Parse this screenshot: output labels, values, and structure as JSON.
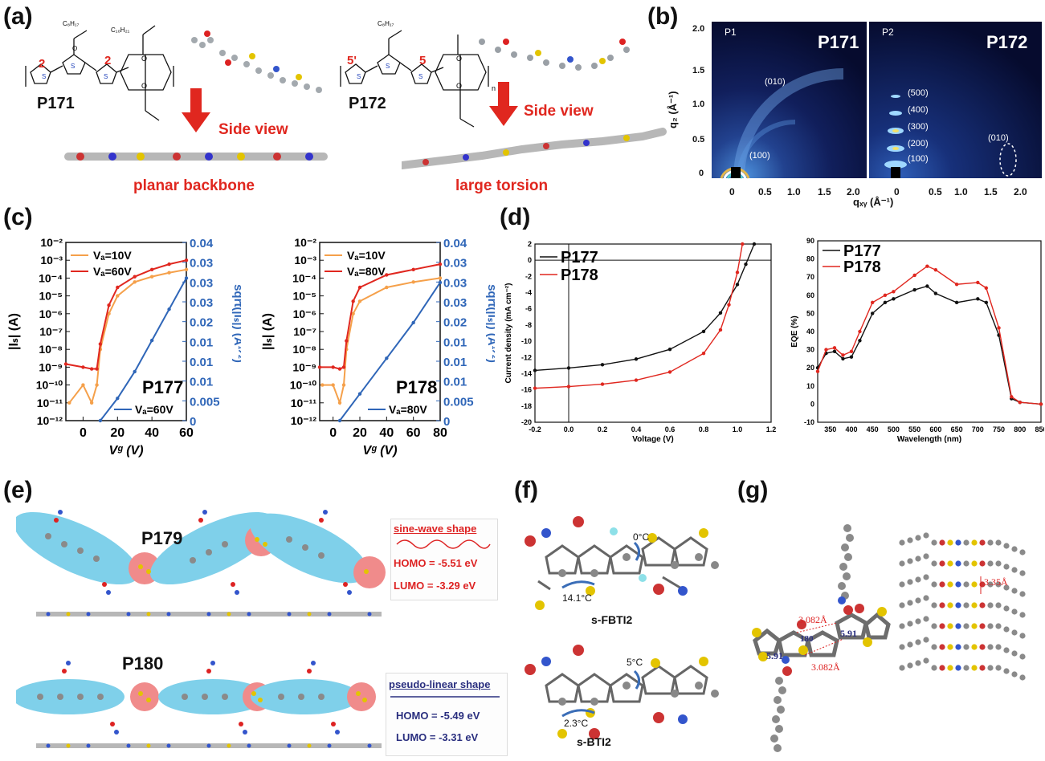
{
  "panels": {
    "a": {
      "label": "(a)",
      "p171": "P171",
      "p172": "P172",
      "side_view": "Side view",
      "planar": "planar backbone",
      "torsion": "large torsion",
      "pos2a": "2",
      "pos2b": "2",
      "pos5a": "5'",
      "pos5b": "5"
    },
    "b": {
      "label": "(b)",
      "left_tag": "P1",
      "right_tag": "P2",
      "left_title": "P171",
      "right_title": "P172",
      "qz_label": "q₂ (Å⁻¹)",
      "qxy_label": "qₓᵧ (Å⁻¹)",
      "yticks": [
        "2.0",
        "1.5",
        "1.0",
        "0.5",
        "0"
      ],
      "xticks": [
        "0",
        "0.5",
        "1.0",
        "1.5",
        "2.0"
      ],
      "left_peaks": [
        "(010)",
        "(100)"
      ],
      "right_peaks": [
        "(500)",
        "(400)",
        "(300)",
        "(200)",
        "(100)",
        "(010)"
      ]
    },
    "c": {
      "label": "(c)",
      "left": {
        "name": "P177",
        "legend": [
          "Vₐ=10V",
          "Vₐ=60V",
          "Vₐ=60V"
        ],
        "yleft_ticks": [
          "10⁻²",
          "10⁻³",
          "10⁻⁴",
          "10⁻⁵",
          "10⁻⁶",
          "10⁻⁷",
          "10⁻⁸",
          "10⁻⁹",
          "10⁻¹⁰",
          "10⁻¹¹",
          "10⁻¹²"
        ],
        "yright_ticks": [
          "0.04",
          "0.03",
          "0.03",
          "0.03",
          "0.02",
          "0.01",
          "0.01",
          "0.01",
          "0.005",
          "0"
        ],
        "xticks": [
          "0",
          "20",
          "40",
          "60"
        ],
        "ylabel_left": "|Iₛ| (A)",
        "ylabel_right": "sqrt(|Iₛ|) (A¹ᐟ²)",
        "xlabel": "Vᵍ (V)"
      },
      "right": {
        "name": "P178",
        "legend": [
          "Vₐ=10V",
          "Vₐ=80V",
          "Vₐ=80V"
        ],
        "yleft_ticks": [
          "10⁻²",
          "10⁻³",
          "10⁻⁴",
          "10⁻⁵",
          "10⁻⁶",
          "10⁻⁷",
          "10⁻⁸",
          "10⁻⁹",
          "10⁻¹⁰",
          "10⁻¹¹",
          "10⁻¹²"
        ],
        "yright_ticks": [
          "0.04",
          "0.03",
          "0.03",
          "0.03",
          "0.02",
          "0.01",
          "0.01",
          "0.01",
          "0.005",
          "0"
        ],
        "xticks": [
          "0",
          "20",
          "40",
          "60",
          "80"
        ],
        "ylabel_left": "|Iₛ| (A)",
        "ylabel_right": "sqrt(|Iₛ|) (A¹ᐟ²)",
        "xlabel": "Vᵍ (V)"
      }
    },
    "d": {
      "label": "(d)",
      "jv": {
        "ylabel": "Current density (mA cm⁻²)",
        "xlabel": "Voltage (V)",
        "legend": [
          "P177",
          "P178"
        ],
        "yticks": [
          "2",
          "0",
          "-2",
          "-4",
          "-6",
          "-8",
          "-10",
          "-12",
          "-14",
          "-16",
          "-18",
          "-20"
        ],
        "xticks": [
          "-0.2",
          "0.0",
          "0.2",
          "0.4",
          "0.6",
          "0.8",
          "1.0",
          "1.2"
        ]
      },
      "eqe": {
        "ylabel": "EQE (%)",
        "xlabel": "Wavelength (nm)",
        "legend": [
          "P177",
          "P178"
        ],
        "yticks": [
          "90",
          "80",
          "70",
          "60",
          "50",
          "40",
          "30",
          "20",
          "10",
          "0",
          "-10"
        ],
        "xticks": [
          "350",
          "400",
          "450",
          "500",
          "550",
          "600",
          "650",
          "700",
          "750",
          "800",
          "850"
        ]
      }
    },
    "e": {
      "label": "(e)",
      "p179": "P179",
      "p180": "P180",
      "sine": "sine-wave shape",
      "homo1": "HOMO = -5.51 eV",
      "lumo1": "LUMO = -3.29 eV",
      "pseudo": "pseudo-linear shape",
      "homo2": "HOMO = -5.49 eV",
      "lumo2": "LUMO = -3.31 eV"
    },
    "f": {
      "label": "(f)",
      "a1": "0°C",
      "a2": "14.1°C",
      "name1": "s-FBTI2",
      "a3": "5°C",
      "a4": "2.3°C",
      "name2": "s-BTI2"
    },
    "g": {
      "label": "(g)",
      "d1": "3.082Å",
      "d2": "3.082Å",
      "ang1": "5.91",
      "ang2": "5.91",
      "ang3": "180",
      "stack": "3.35Å"
    }
  },
  "colors": {
    "red": "#e0271f",
    "blue_curve": "#2f66b8",
    "orange": "#f5a04a",
    "black_curve": "#111111",
    "cyan": "#7fd0ea",
    "pink": "#f08b8b",
    "navy": "#2a2f7f"
  },
  "chart_data": [
    {
      "type": "line",
      "title": "",
      "xlabel": "Vᵍ (V)",
      "ylabel": "|Iₛ| (A)",
      "yscale": "log",
      "xlim": [
        -10,
        60
      ],
      "ylim": [
        1e-12,
        0.01
      ],
      "series": [
        {
          "name": "Vₐ=10V",
          "x": [
            -8,
            0,
            5,
            8,
            10,
            15,
            20,
            30,
            40,
            50,
            60
          ],
          "y": [
            1e-11,
            1e-10,
            1e-11,
            1e-10,
            1e-08,
            1e-06,
            1e-05,
            6e-05,
            0.00012,
            0.0002,
            0.0003
          ]
        },
        {
          "name": "Vₐ=60V",
          "x": [
            -10,
            0,
            5,
            8,
            10,
            15,
            20,
            30,
            40,
            50,
            60
          ],
          "y": [
            1.5e-09,
            1e-09,
            8e-10,
            8e-10,
            2e-08,
            3e-06,
            3e-05,
            0.00012,
            0.0003,
            0.0006,
            0.001
          ]
        },
        {
          "name": "Vₐ=60V",
          "axis": "right",
          "x": [
            10,
            20,
            30,
            40,
            50,
            60
          ],
          "y": [
            0,
            0.005,
            0.011,
            0.018,
            0.025,
            0.032
          ]
        }
      ]
    },
    {
      "type": "line",
      "title": "",
      "xlabel": "Vᵍ (V)",
      "ylabel": "|Iₛ| (A)",
      "yscale": "log",
      "xlim": [
        -10,
        80
      ],
      "ylim": [
        1e-12,
        0.01
      ],
      "series": [
        {
          "name": "Vₐ=10V",
          "x": [
            -8,
            0,
            5,
            8,
            10,
            15,
            20,
            40,
            60,
            80
          ],
          "y": [
            1e-10,
            1e-10,
            1e-11,
            1e-10,
            1e-08,
            1e-06,
            5e-06,
            3e-05,
            6e-05,
            0.0001
          ]
        },
        {
          "name": "Vₐ=80V",
          "x": [
            -10,
            0,
            5,
            8,
            10,
            15,
            20,
            40,
            60,
            80
          ],
          "y": [
            1e-09,
            1e-09,
            8e-10,
            1e-09,
            3e-08,
            5e-06,
            3e-05,
            0.00015,
            0.0003,
            0.0006
          ]
        },
        {
          "name": "Vₐ=80V",
          "axis": "right",
          "x": [
            5,
            20,
            40,
            60,
            80
          ],
          "y": [
            0,
            0.006,
            0.014,
            0.022,
            0.031
          ]
        }
      ]
    },
    {
      "type": "line",
      "title": "",
      "xlabel": "Voltage (V)",
      "ylabel": "Current density (mA cm⁻²)",
      "xlim": [
        -0.2,
        1.2
      ],
      "ylim": [
        -20,
        2
      ],
      "series": [
        {
          "name": "P177",
          "x": [
            -0.2,
            0,
            0.2,
            0.4,
            0.6,
            0.8,
            0.9,
            1.0,
            1.05,
            1.1
          ],
          "y": [
            -13.6,
            -13.3,
            -12.9,
            -12.2,
            -11.0,
            -8.8,
            -6.5,
            -3.0,
            -0.5,
            2
          ]
        },
        {
          "name": "P178",
          "x": [
            -0.2,
            0,
            0.2,
            0.4,
            0.6,
            0.8,
            0.9,
            0.95,
            1.0,
            1.03
          ],
          "y": [
            -15.8,
            -15.6,
            -15.3,
            -14.8,
            -13.8,
            -11.5,
            -8.6,
            -5.5,
            -1.5,
            2
          ]
        }
      ]
    },
    {
      "type": "line",
      "title": "",
      "xlabel": "Wavelength (nm)",
      "ylabel": "EQE (%)",
      "xlim": [
        320,
        850
      ],
      "ylim": [
        -10,
        90
      ],
      "series": [
        {
          "name": "P177",
          "x": [
            320,
            340,
            360,
            380,
            400,
            420,
            450,
            480,
            500,
            550,
            580,
            600,
            650,
            700,
            720,
            750,
            780,
            800,
            850
          ],
          "y": [
            20,
            28,
            29,
            25,
            26,
            35,
            50,
            56,
            58,
            63,
            65,
            61,
            56,
            58,
            56,
            38,
            3,
            1,
            0
          ]
        },
        {
          "name": "P178",
          "x": [
            320,
            340,
            360,
            380,
            400,
            420,
            450,
            480,
            500,
            550,
            580,
            600,
            650,
            700,
            720,
            750,
            780,
            800,
            850
          ],
          "y": [
            18,
            30,
            31,
            27,
            29,
            40,
            56,
            60,
            62,
            71,
            76,
            74,
            66,
            67,
            64,
            42,
            4,
            1,
            0
          ]
        }
      ]
    }
  ]
}
